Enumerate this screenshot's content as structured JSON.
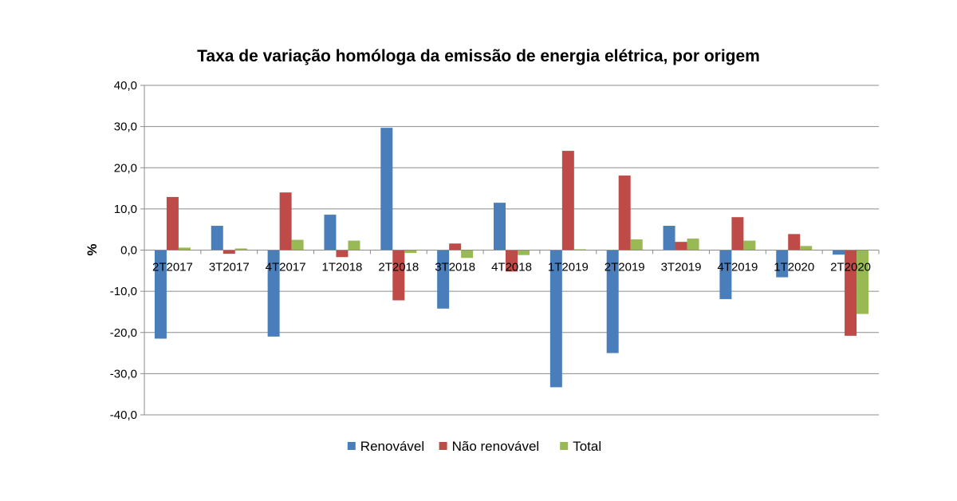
{
  "chart_data": {
    "type": "bar",
    "title": "Taxa de variação homóloga da emissão de energia elétrica, por origem",
    "ylabel": "%",
    "xlabel": "",
    "ylim": [
      -40,
      40
    ],
    "yticks": [
      40,
      30,
      20,
      10,
      0,
      -10,
      -20,
      -30,
      -40
    ],
    "ytick_labels": [
      "40,0",
      "30,0",
      "20,0",
      "10,0",
      "0,0",
      "-10,0",
      "-20,0",
      "-30,0",
      "-40,0"
    ],
    "grid": true,
    "legend_position": "bottom",
    "categories": [
      "2T2017",
      "3T2017",
      "4T2017",
      "1T2018",
      "2T2018",
      "3T2018",
      "4T2018",
      "1T2019",
      "2T2019",
      "3T2019",
      "4T2019",
      "1T2020",
      "2T2020"
    ],
    "series": [
      {
        "name": "Renovável",
        "color": "#4a7ebb",
        "values": [
          -21.5,
          5.9,
          -21.0,
          8.6,
          29.7,
          -14.2,
          11.5,
          -33.3,
          -25.0,
          5.9,
          -11.9,
          -6.6,
          -1.1
        ]
      },
      {
        "name": "Não renovável",
        "color": "#be4b48",
        "values": [
          12.9,
          -0.9,
          14.0,
          -1.7,
          -12.2,
          1.6,
          -5.2,
          24.1,
          18.1,
          2.0,
          8.0,
          3.9,
          -20.8
        ]
      },
      {
        "name": "Total",
        "color": "#98b954",
        "values": [
          0.6,
          0.4,
          2.5,
          2.3,
          -0.7,
          -1.9,
          -1.2,
          0.2,
          2.6,
          2.8,
          2.3,
          1.0,
          -15.5
        ]
      }
    ]
  }
}
